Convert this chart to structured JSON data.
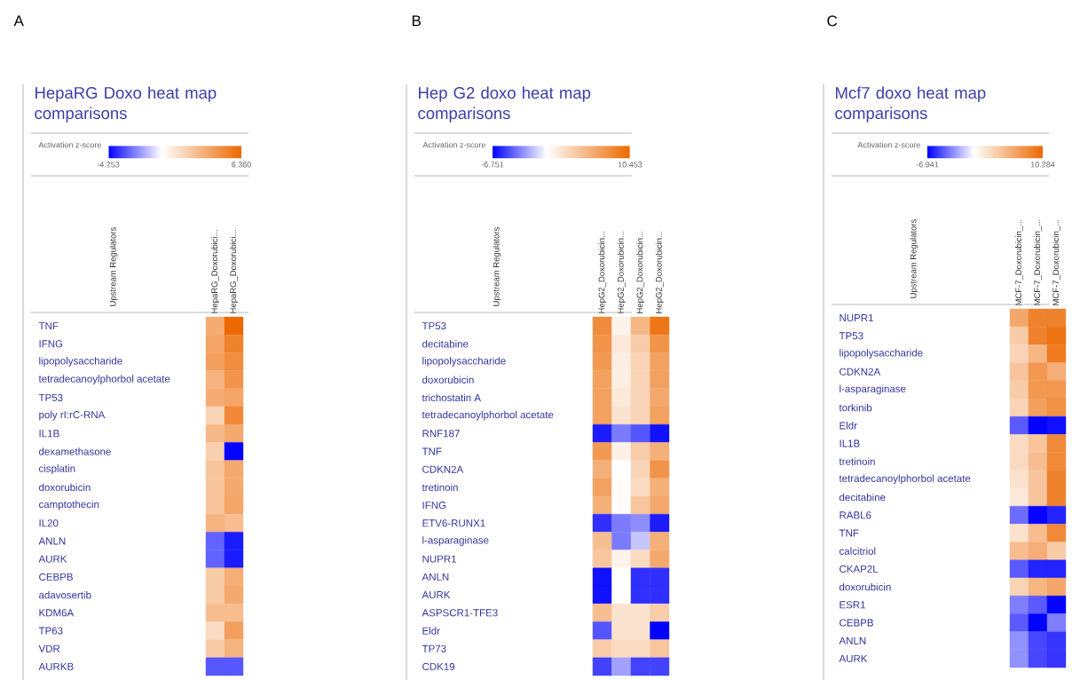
{
  "chart_data": [
    {
      "type": "heatmap",
      "title": "HepaRG Doxo heat map comparisons",
      "clabel": "Activation z-score",
      "ylabel": "Upstream Regulators",
      "annotations": [
        "A"
      ],
      "clim": [
        -4.253,
        6.36
      ],
      "cticks": [
        -4.253,
        {
          "value": 6.36,
          "label": "6.360"
        }
      ],
      "categories": [
        "HepaRG_Doxorubici...",
        "HepaRG_Doxorubici..."
      ],
      "y_categories": [
        "TNF",
        "IFNG",
        "lipopolysaccharide",
        "tetradecanoylphorbol acetate",
        "TP53",
        "poly rI:rC-RNA",
        "IL1B",
        "dexamethasone",
        "cisplatin",
        "doxorubicin",
        "camptothecin",
        "IL20",
        "ANLN",
        "AURK",
        "CEBPB",
        "adavosertib",
        "KDM6A",
        "TP63",
        "VDR",
        "AURKB"
      ],
      "cells": [
        [
          3.5,
          6.3
        ],
        [
          3.8,
          5.2
        ],
        [
          4.0,
          4.8
        ],
        [
          3.2,
          4.5
        ],
        [
          3.5,
          3.8
        ],
        [
          1.8,
          5.0
        ],
        [
          3.0,
          3.6
        ],
        [
          2.0,
          -4.2
        ],
        [
          2.5,
          3.6
        ],
        [
          2.5,
          3.6
        ],
        [
          2.5,
          3.8
        ],
        [
          3.2,
          2.8
        ],
        [
          -2.6,
          -3.8
        ],
        [
          -2.6,
          -3.8
        ],
        [
          2.2,
          3.4
        ],
        [
          2.2,
          3.6
        ],
        [
          2.8,
          2.8
        ],
        [
          1.5,
          4.0
        ],
        [
          2.2,
          3.2
        ],
        [
          -2.8,
          -2.8
        ]
      ]
    },
    {
      "type": "heatmap",
      "title": "Hep G2 doxo heat map comparisons",
      "clabel": "Activation z-score",
      "ylabel": "Upstream Regulators",
      "annotations": [
        "B"
      ],
      "clim": [
        -6.751,
        10.453
      ],
      "cticks": [
        -6.751,
        10.453
      ],
      "categories": [
        "HepG2_Doxorubicin...",
        "HepG2_Doxorubicin...",
        "HepG2_Doxorubicin...",
        "HepG2_Doxorubicin..."
      ],
      "y_categories": [
        "TP53",
        "decitabine",
        "lipopolysaccharide",
        "doxorubicin",
        "trichostatin A",
        "tetradecanoylphorbol acetate",
        "RNF187",
        "TNF",
        "CDKN2A",
        "tretinoin",
        "IFNG",
        "ETV6-RUNX1",
        "l-asparaginase",
        "NUPR1",
        "ANLN",
        "AURK",
        "ASPSCR1-TFE3",
        "Eldr",
        "TP73",
        "CDK19"
      ],
      "cells": [
        [
          8.0,
          0.8,
          5.0,
          9.5
        ],
        [
          7.5,
          1.5,
          3.5,
          7.5
        ],
        [
          7.0,
          1.2,
          3.0,
          6.5
        ],
        [
          6.5,
          1.2,
          3.0,
          6.5
        ],
        [
          6.5,
          1.5,
          3.0,
          6.0
        ],
        [
          6.5,
          2.0,
          3.0,
          6.5
        ],
        [
          -6.0,
          -3.5,
          -4.5,
          -6.3
        ],
        [
          7.0,
          1.0,
          3.5,
          5.5
        ],
        [
          5.5,
          0.0,
          3.0,
          7.5
        ],
        [
          6.5,
          0.2,
          2.5,
          5.5
        ],
        [
          5.5,
          0.2,
          4.0,
          6.0
        ],
        [
          -5.5,
          -3.5,
          -3.0,
          -6.0
        ],
        [
          4.5,
          -3.5,
          -1.5,
          5.5
        ],
        [
          4.0,
          0.8,
          2.5,
          6.0
        ],
        [
          -6.3,
          0.0,
          -5.5,
          -5.5
        ],
        [
          -6.3,
          0.0,
          -5.5,
          -5.5
        ],
        [
          4.5,
          2.0,
          2.0,
          3.5
        ],
        [
          -4.5,
          2.0,
          2.0,
          -6.7
        ],
        [
          3.5,
          2.5,
          2.5,
          4.0
        ],
        [
          -5.0,
          -2.5,
          -5.0,
          -5.0
        ]
      ]
    },
    {
      "type": "heatmap",
      "title": "Mcf7 doxo heat map comparisons",
      "clabel": "Activation z-score",
      "ylabel": "Upstream Regulators",
      "annotations": [
        "C"
      ],
      "clim": [
        -6.941,
        10.284
      ],
      "cticks": [
        -6.941,
        10.284
      ],
      "categories": [
        "MCF-7_Doxorubicin_...",
        "MCF-7_Doxorubicin_...",
        "MCF-7_Doxorubicin_..."
      ],
      "y_categories": [
        "NUPR1",
        "TP53",
        "lipopolysaccharide",
        "CDKN2A",
        "l-asparaginase",
        "torkinib",
        "Eldr",
        "IL1B",
        "tretinoin",
        "tetradecanoylphorbol acetate",
        "decitabine",
        "RABL6",
        "TNF",
        "calcitriol",
        "CKAP2L",
        "doxorubicin",
        "ESR1",
        "CEBPB",
        "ANLN",
        "AURK"
      ],
      "cells": [
        [
          6.0,
          8.5,
          8.5
        ],
        [
          3.5,
          8.5,
          9.5
        ],
        [
          3.0,
          5.0,
          9.0
        ],
        [
          4.0,
          7.0,
          5.5
        ],
        [
          3.5,
          7.0,
          7.0
        ],
        [
          3.0,
          6.5,
          7.5
        ],
        [
          -4.5,
          -6.9,
          -6.5
        ],
        [
          2.5,
          4.0,
          8.0
        ],
        [
          2.5,
          4.5,
          8.0
        ],
        [
          2.0,
          4.0,
          8.5
        ],
        [
          1.5,
          4.0,
          8.5
        ],
        [
          -4.0,
          -6.8,
          -6.0
        ],
        [
          2.0,
          4.5,
          8.0
        ],
        [
          4.5,
          5.5,
          3.5
        ],
        [
          -4.5,
          -6.0,
          -6.0
        ],
        [
          3.0,
          5.0,
          6.0
        ],
        [
          -3.5,
          -4.5,
          -6.8
        ],
        [
          -4.5,
          -6.9,
          -3.5
        ],
        [
          -3.0,
          -5.0,
          -5.5
        ],
        [
          -3.0,
          -5.0,
          -5.5
        ]
      ]
    }
  ]
}
